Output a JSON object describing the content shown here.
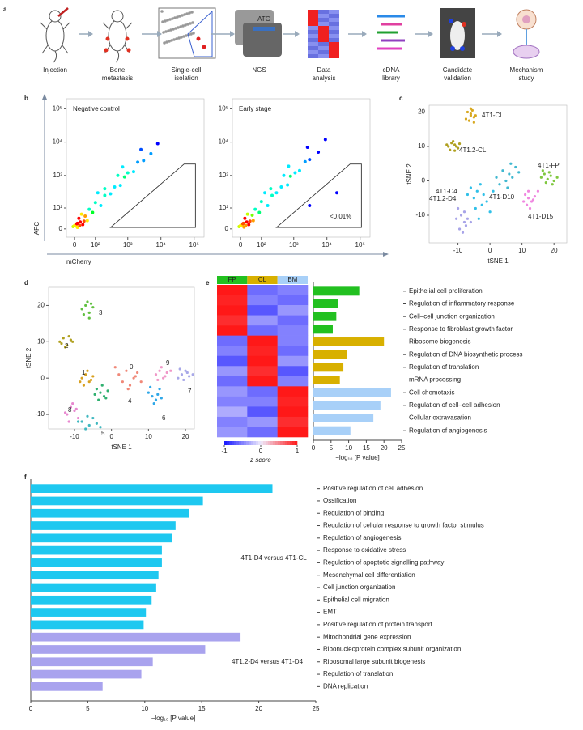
{
  "panel_labels": [
    "a",
    "b",
    "c",
    "d",
    "e",
    "f"
  ],
  "workflow": {
    "steps": [
      [
        "Injection"
      ],
      [
        "Bone",
        "metastasis"
      ],
      [
        "Single-cell",
        "isolation"
      ],
      [
        "NGS"
      ],
      [
        "Data",
        "analysis"
      ],
      [
        "cDNA",
        "library"
      ],
      [
        "Candidate",
        "validation"
      ],
      [
        "Mechanism",
        "study"
      ]
    ],
    "ngs_text": "ATG"
  },
  "chart_data": [
    {
      "type": "scatter",
      "scale": "asinh",
      "title": "Negative control",
      "xlabel": "mCherry",
      "ylabel": "APC",
      "xlim": [
        -30,
        200000
      ],
      "ylim": [
        -30,
        200000
      ],
      "xticks": [
        0,
        {
          "value": 100,
          "label": "10²"
        },
        {
          "value": 1000,
          "label": "10³"
        },
        {
          "value": 10000,
          "label": "10⁴"
        },
        {
          "value": 100000,
          "label": "10⁵"
        }
      ],
      "yticks": [
        0,
        {
          "value": 100,
          "label": "10²"
        },
        {
          "value": 1000,
          "label": "10³"
        },
        {
          "value": 10000,
          "label": "10⁴"
        },
        {
          "value": 100000,
          "label": "10⁵"
        }
      ],
      "x": [
        5,
        10,
        20,
        30,
        15,
        -5,
        40,
        60,
        80,
        100,
        150,
        200,
        300,
        400,
        600,
        800,
        1000,
        1500,
        2000,
        3000,
        5000,
        8000,
        200,
        500,
        50,
        25,
        120,
        2500,
        700,
        10,
        0,
        8,
        18,
        35
      ],
      "values": [
        10,
        5,
        25,
        15,
        40,
        8,
        50,
        90,
        70,
        150,
        120,
        250,
        280,
        450,
        500,
        900,
        1200,
        1300,
        2500,
        2800,
        4500,
        9000,
        400,
        1000,
        30,
        60,
        300,
        6000,
        1800,
        20,
        12,
        18,
        12,
        28
      ],
      "gate": {
        "x": [
          300,
          50000,
          110000,
          110000
        ],
        "y": [
          5,
          2200,
          2200,
          5
        ]
      }
    },
    {
      "type": "scatter",
      "scale": "asinh",
      "title": "Early stage",
      "annotation": "<0.01%",
      "xlim": [
        -30,
        200000
      ],
      "ylim": [
        -30,
        200000
      ],
      "xticks": [
        0,
        {
          "value": 100,
          "label": "10²"
        },
        {
          "value": 1000,
          "label": "10³"
        },
        {
          "value": 10000,
          "label": "10⁴"
        },
        {
          "value": 100000,
          "label": "10⁵"
        }
      ],
      "yticks": [
        0,
        {
          "value": 100,
          "label": "10²"
        },
        {
          "value": 1000,
          "label": "10³"
        },
        {
          "value": 10000,
          "label": "10⁴"
        },
        {
          "value": 100000,
          "label": "10⁵"
        }
      ],
      "x": [
        5,
        12,
        22,
        30,
        15,
        -5,
        45,
        60,
        85,
        100,
        160,
        220,
        300,
        420,
        650,
        800,
        1100,
        1500,
        2200,
        3000,
        5500,
        9000,
        200,
        500,
        50,
        25,
        130,
        2600,
        700,
        10,
        0,
        8,
        18,
        35,
        3000,
        20000
      ],
      "values": [
        12,
        6,
        25,
        15,
        40,
        8,
        55,
        90,
        70,
        160,
        120,
        250,
        300,
        450,
        520,
        950,
        1200,
        1400,
        2600,
        3000,
        5000,
        12000,
        400,
        1000,
        30,
        60,
        300,
        7000,
        1900,
        20,
        12,
        18,
        12,
        28,
        120,
        300
      ],
      "gate": {
        "x": [
          300,
          50000,
          110000,
          110000
        ],
        "y": [
          5,
          2200,
          2200,
          5
        ]
      }
    },
    {
      "type": "scatter",
      "xlabel": "tSNE 1",
      "ylabel": "tSNE 2",
      "xlim": [
        -19,
        24
      ],
      "ylim": [
        -18,
        22
      ],
      "xticks": [
        -10,
        0,
        10,
        20
      ],
      "yticks": [
        -10,
        0,
        10,
        20
      ],
      "series": [
        {
          "name": "4T1-CL",
          "color": "#d8a820",
          "x": [
            -7,
            -6,
            -5,
            -6.5,
            -5.5,
            -4.5,
            -7.5,
            -6,
            -5,
            -6
          ],
          "values": [
            20,
            19,
            18.5,
            17.5,
            20.5,
            19,
            18,
            21,
            17,
            19.5
          ]
        },
        {
          "name": "4T1.2-CL",
          "color": "#b0a020",
          "x": [
            -13,
            -12,
            -11,
            -10,
            -12.5,
            -11.5,
            -10.5,
            -13.5,
            -11,
            -9.5
          ],
          "values": [
            10,
            11,
            10.5,
            9.5,
            9,
            11.5,
            10,
            10.5,
            8.8,
            10.8
          ]
        },
        {
          "name": "4T1-D4",
          "color": "#30c0e8",
          "x": [
            -6,
            -4,
            -2,
            -5,
            -3,
            -1,
            -7,
            -4.5,
            -2.5,
            1,
            0,
            -3.5
          ],
          "values": [
            -2,
            -3,
            -4,
            -5,
            -1,
            -6,
            -4,
            -8,
            -7,
            -3,
            -9,
            -11
          ]
        },
        {
          "name": "4T1-D10",
          "color": "#40b8d0",
          "x": [
            4,
            6,
            8,
            5,
            7,
            3,
            9,
            6.5,
            2,
            5.5
          ],
          "values": [
            3,
            2,
            4,
            0,
            1,
            -1,
            2.5,
            5,
            1,
            -2
          ]
        },
        {
          "name": "4T1-FP",
          "color": "#80c840",
          "x": [
            16,
            17,
            18,
            19,
            20,
            17.5,
            18.5,
            21,
            16.5,
            19.5
          ],
          "values": [
            1,
            2,
            0.5,
            1.5,
            0,
            -0.5,
            2.5,
            1,
            3,
            -1
          ]
        },
        {
          "name": "4T1.2-D4",
          "color": "#a8a4e8",
          "x": [
            -10,
            -9,
            -8,
            -7,
            -9.5,
            -8.5,
            -7.5,
            -6,
            -10.5,
            -8
          ],
          "values": [
            -8,
            -10,
            -12,
            -11,
            -14,
            -15,
            -13,
            -12,
            -11,
            -9
          ]
        },
        {
          "name": "4T1-D15",
          "color": "#f088e0",
          "x": [
            11,
            12,
            13,
            14,
            11.5,
            12.5,
            13.5,
            10.5,
            15,
            12
          ],
          "values": [
            -4,
            -5,
            -6,
            -4.5,
            -7,
            -8,
            -5.5,
            -6,
            -3,
            -3
          ]
        }
      ]
    },
    {
      "type": "scatter",
      "xlabel": "tSNE 1",
      "ylabel": "tSNE 2",
      "xlim": [
        -17,
        22.4
      ],
      "ylim": [
        -14,
        25
      ],
      "xticks": [
        -10,
        0,
        10,
        20
      ],
      "yticks": [
        -10,
        0,
        10,
        20
      ],
      "series": [
        {
          "name": "0",
          "color": "#f08878",
          "x": [
            2,
            4,
            6,
            3,
            5,
            7,
            8,
            1,
            4.5,
            6.5
          ],
          "values": [
            1,
            2,
            0,
            -1,
            -2,
            1.5,
            -1,
            3,
            -3,
            0.5
          ]
        },
        {
          "name": "1",
          "color": "#d8a020",
          "x": [
            -8,
            -7,
            -6,
            -5,
            -7.5,
            -6.5,
            -5.5,
            -8.5
          ],
          "values": [
            0,
            1,
            -1,
            0.5,
            -2,
            2,
            -0.5,
            -1
          ]
        },
        {
          "name": "2",
          "color": "#b0a020",
          "x": [
            -14,
            -13,
            -12,
            -11,
            -13.5,
            -12.5,
            -11.5,
            -10.5
          ],
          "values": [
            10,
            11,
            9,
            10.5,
            9.5,
            8.5,
            11.5,
            10
          ]
        },
        {
          "name": "3",
          "color": "#60c040",
          "x": [
            -8,
            -7,
            -6,
            -5,
            -7.5,
            -6.5,
            -5.5,
            -6
          ],
          "values": [
            19,
            20,
            18,
            19.5,
            17.5,
            21,
            20.5,
            16.5
          ]
        },
        {
          "name": "4",
          "color": "#30b070",
          "x": [
            -4,
            -3,
            -2,
            -1,
            -3.5,
            -2.5,
            -1.5,
            -4.5
          ],
          "values": [
            -3,
            -4,
            -5,
            -3.5,
            -6,
            -2,
            -5.5,
            -4.5
          ]
        },
        {
          "name": "5",
          "color": "#40b8c0",
          "x": [
            -8,
            -6,
            -4,
            -7,
            -5,
            -3,
            -9,
            -6.5
          ],
          "values": [
            -12,
            -13,
            -12.5,
            -14,
            -11,
            -13.5,
            -12,
            -10.5
          ]
        },
        {
          "name": "6",
          "color": "#30a8e8",
          "x": [
            10,
            11,
            12,
            13,
            11.5,
            12.5,
            13.5,
            10.5
          ],
          "values": [
            -4,
            -5,
            -6,
            -3,
            -7,
            -4.5,
            -5.5,
            -2.5
          ]
        },
        {
          "name": "7",
          "color": "#a8a8e8",
          "x": [
            18,
            19,
            20,
            21,
            19.5,
            20.5,
            22,
            18.5
          ],
          "values": [
            0,
            1,
            2,
            0.5,
            -0.5,
            1.5,
            1,
            2.5
          ]
        },
        {
          "name": "8",
          "color": "#e888d0",
          "x": [
            -11,
            -10,
            -12,
            -9,
            -10.5,
            -11.5,
            -9.5,
            -12.5
          ],
          "values": [
            -8,
            -9,
            -10,
            -11,
            -7,
            -12,
            -8.5,
            -9.5
          ]
        },
        {
          "name": "9",
          "color": "#f098c8",
          "x": [
            12,
            13,
            14,
            15,
            13.5,
            14.5,
            12.5,
            16
          ],
          "values": [
            1,
            2,
            0,
            1.5,
            3,
            0.5,
            -0.5,
            2
          ]
        }
      ]
    },
    {
      "type": "heatmap",
      "columns": [
        "FP",
        "CL",
        "BM"
      ],
      "column_colors": [
        "#22c020",
        "#d8b000",
        "#a8d0f8"
      ],
      "zlim": [
        -1,
        1
      ],
      "zticks": [
        -1,
        0,
        1
      ],
      "zlabel": "z score",
      "values": [
        [
          1,
          -0.6,
          -0.5
        ],
        [
          0.95,
          -0.5,
          -0.6
        ],
        [
          1,
          -0.7,
          -0.4
        ],
        [
          0.9,
          -0.4,
          -0.6
        ],
        [
          1,
          -0.6,
          -0.5
        ],
        [
          -0.6,
          1,
          -0.5
        ],
        [
          -0.5,
          0.95,
          -0.6
        ],
        [
          -0.7,
          1,
          -0.4
        ],
        [
          -0.4,
          0.9,
          -0.7
        ],
        [
          -0.6,
          1,
          -0.5
        ],
        [
          -0.4,
          -0.6,
          1
        ],
        [
          -0.5,
          -0.5,
          0.95
        ],
        [
          -0.3,
          -0.7,
          1
        ],
        [
          -0.5,
          -0.4,
          0.9
        ],
        [
          -0.4,
          -0.6,
          1
        ]
      ]
    },
    {
      "type": "bar",
      "orientation": "horizontal",
      "xlabel": "−log₁₀ [P value]",
      "xlim": [
        0,
        25
      ],
      "xticks": [
        0,
        5,
        10,
        15,
        20,
        25
      ],
      "categories": [
        "Epithelial cell proliferation",
        "Regulation of inflammatory response",
        "Cell–cell junction organization",
        "Response to fibroblast growth factor",
        "Ribosome biogenesis",
        "Regulation of DNA biosynthetic process",
        "Regulation of translation",
        "mRNA processing",
        "Cell chemotaxis",
        "Regulation of cell–cell adhesion",
        "Cellular extravasation",
        "Regulation of angiogenesis"
      ],
      "values": [
        13,
        7,
        6.5,
        5.5,
        20,
        9.5,
        8.5,
        7.5,
        22,
        19,
        17,
        10.5
      ],
      "colors": [
        "#22c020",
        "#22c020",
        "#22c020",
        "#22c020",
        "#d8b000",
        "#d8b000",
        "#d8b000",
        "#d8b000",
        "#a8d0f8",
        "#a8d0f8",
        "#a8d0f8",
        "#a8d0f8"
      ]
    },
    {
      "type": "bar",
      "orientation": "horizontal",
      "xlabel": "−log₁₀ [P value]",
      "xlim": [
        0,
        25
      ],
      "xticks": [
        0,
        5,
        10,
        15,
        20,
        25
      ],
      "categories": [
        "Positive regulation of cell adhesion",
        "Ossification",
        "Regulation of binding",
        "Regulation of cellular response to growth factor stimulus",
        "Regulation of angiogenesis",
        "Response to oxidative stress",
        "Regulation of apoptotic signalling pathway",
        "Mesenchymal cell differentiation",
        "Cell junction organization",
        "Epithelial cell migration",
        "EMT",
        "Positive regulation of protein transport",
        "Mitochondrial gene expression",
        "Ribonucleoprotein complex subunit organization",
        "Ribosomal large subunit biogenesis",
        "Regulation of translation",
        "DNA replication"
      ],
      "series": [
        {
          "name": "4T1-D4 versus 4T1-CL",
          "color": "#1ec8f0",
          "values": [
            21.2,
            15.1,
            13.9,
            12.7,
            12.4,
            11.5,
            11.5,
            11.2,
            11.0,
            10.6,
            10.1,
            9.9,
            null,
            null,
            null,
            null,
            null
          ]
        },
        {
          "name": "4T1.2-D4 versus 4T1-D4",
          "color": "#a9a3ee",
          "values": [
            null,
            null,
            null,
            null,
            null,
            null,
            null,
            null,
            null,
            null,
            null,
            null,
            18.4,
            15.3,
            10.7,
            9.7,
            6.3
          ]
        }
      ]
    }
  ]
}
